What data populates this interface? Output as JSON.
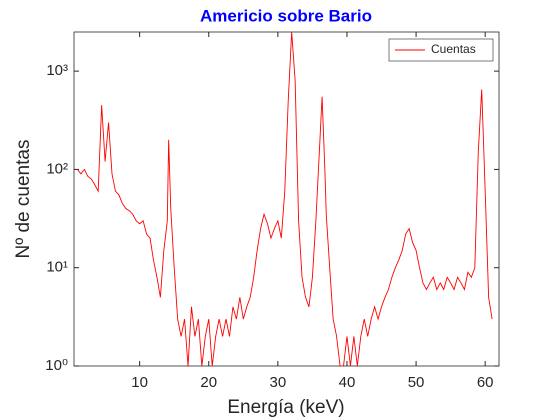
{
  "chart_data": {
    "type": "line",
    "title": "Americio sobre Bario",
    "xlabel": "Energía (keV)",
    "ylabel": "Nº de cuentas",
    "xlim": [
      0.5,
      62
    ],
    "ylim": [
      1,
      2500
    ],
    "yscale": "log",
    "xticks": [
      10,
      20,
      30,
      40,
      50,
      60
    ],
    "yticks": [
      {
        "value": 1,
        "label": "10⁰"
      },
      {
        "value": 10,
        "label": "10¹"
      },
      {
        "value": 100,
        "label": "10²"
      },
      {
        "value": 1000,
        "label": "10³"
      }
    ],
    "legend": "northeast",
    "x": [
      1,
      1.5,
      2,
      2.5,
      3,
      3.5,
      4,
      4.5,
      5,
      5.5,
      6,
      6.5,
      7,
      7.5,
      8,
      8.5,
      9,
      9.5,
      10,
      10.5,
      11,
      11.5,
      12,
      12.5,
      13,
      13.5,
      14,
      14.2,
      14.5,
      15,
      15.5,
      16,
      16.5,
      17,
      17.5,
      18,
      18.5,
      19,
      19.5,
      20,
      20.5,
      21,
      21.5,
      22,
      22.5,
      23,
      23.5,
      24,
      24.5,
      25,
      25.5,
      26,
      26.5,
      27,
      27.5,
      28,
      28.5,
      29,
      29.5,
      30,
      30.5,
      31,
      31.5,
      32,
      32.5,
      33,
      33.5,
      34,
      34.5,
      35,
      35.5,
      36,
      36.4,
      36.8,
      37,
      37.5,
      38,
      38.5,
      39,
      39.5,
      40,
      40.5,
      41,
      41.5,
      42,
      42.5,
      43,
      43.5,
      44,
      44.5,
      45,
      45.5,
      46,
      46.5,
      47,
      47.5,
      48,
      48.5,
      49,
      49.5,
      50,
      50.5,
      51,
      51.5,
      52,
      52.5,
      53,
      53.5,
      54,
      54.5,
      55,
      55.5,
      56,
      56.5,
      57,
      57.5,
      58,
      58.5,
      59,
      59.5,
      60,
      60.5,
      61
    ],
    "series": [
      {
        "name": "Cuentas",
        "color": "#ff0000",
        "values": [
          100,
          90,
          100,
          85,
          80,
          70,
          60,
          450,
          120,
          300,
          90,
          60,
          55,
          45,
          40,
          38,
          35,
          30,
          28,
          30,
          22,
          20,
          12,
          8,
          5,
          15,
          30,
          200,
          40,
          10,
          3,
          2,
          3,
          1,
          4,
          2,
          3,
          1,
          2,
          3,
          1,
          2,
          3,
          2,
          3,
          2,
          4,
          3,
          5,
          3,
          4,
          5,
          8,
          15,
          25,
          35,
          28,
          20,
          25,
          30,
          20,
          60,
          500,
          2500,
          800,
          30,
          8,
          5,
          4,
          8,
          30,
          150,
          550,
          100,
          35,
          10,
          3,
          2,
          1,
          1,
          2,
          1,
          2,
          1,
          2,
          3,
          2,
          3,
          4,
          3,
          4,
          5,
          6,
          8,
          10,
          12,
          15,
          22,
          25,
          18,
          15,
          10,
          7,
          6,
          7,
          8,
          6,
          7,
          6,
          8,
          7,
          6,
          8,
          7,
          6,
          9,
          8,
          10,
          150,
          650,
          60,
          5,
          3
        ]
      }
    ]
  }
}
